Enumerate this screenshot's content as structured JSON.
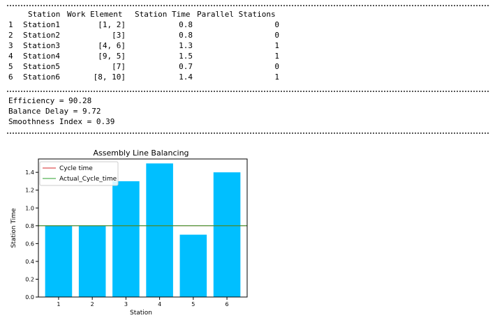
{
  "table": {
    "headers": [
      "Station",
      "Work Element",
      "Station Time",
      "Parallel Stations"
    ],
    "rows": [
      {
        "index": "1",
        "station": "Station1",
        "work_element": "[1, 2]",
        "station_time": "0.8",
        "parallel": "0"
      },
      {
        "index": "2",
        "station": "Station2",
        "work_element": "[3]",
        "station_time": "0.8",
        "parallel": "0"
      },
      {
        "index": "3",
        "station": "Station3",
        "work_element": "[4, 6]",
        "station_time": "1.3",
        "parallel": "1"
      },
      {
        "index": "4",
        "station": "Station4",
        "work_element": "[9, 5]",
        "station_time": "1.5",
        "parallel": "1"
      },
      {
        "index": "5",
        "station": "Station5",
        "work_element": "[7]",
        "station_time": "0.7",
        "parallel": "0"
      },
      {
        "index": "6",
        "station": "Station6",
        "work_element": "[8, 10]",
        "station_time": "1.4",
        "parallel": "1"
      }
    ]
  },
  "metrics": {
    "efficiency": "Efficiency = 90.28",
    "balance_delay": "Balance Delay = 9.72",
    "smoothness": "Smoothness Index = 0.39"
  },
  "chart_data": {
    "type": "bar",
    "title": "Assembly Line Balancing",
    "xlabel": "Station",
    "ylabel": "Station Time",
    "categories": [
      "1",
      "2",
      "3",
      "4",
      "5",
      "6"
    ],
    "values": [
      0.8,
      0.8,
      1.3,
      1.5,
      0.7,
      1.4
    ],
    "ylim": [
      0,
      1.55
    ],
    "yticks": [
      "0.0",
      "0.2",
      "0.4",
      "0.6",
      "0.8",
      "1.0",
      "1.2",
      "1.4"
    ],
    "bar_color": "#00BFFF",
    "lines": [
      {
        "name": "Cycle time",
        "y": 0.8,
        "color": "#d62728"
      },
      {
        "name": "Actual_Cycle_time",
        "y": 0.8,
        "color": "#2ca02c"
      }
    ],
    "legend_position": "top-left",
    "grid": false
  }
}
